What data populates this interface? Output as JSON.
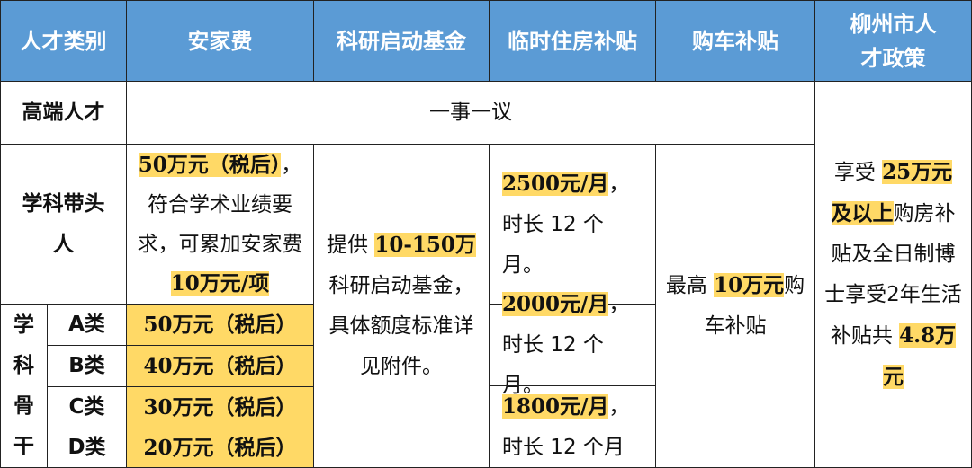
{
  "header": [
    "人才类别",
    "安家费",
    "科研启动基金",
    "临时住房补贴",
    "购车补贴",
    "柳州市人才政策"
  ],
  "high_end": {
    "label": "高端人才",
    "value": "一事一议"
  },
  "leader": {
    "label": "学科带头人",
    "settle_hl1": "50万元（税后）",
    "settle_t1": "，符合学术业绩要求，可累加安家费 ",
    "settle_hl2": "10万元/项",
    "housing_hl": "2500元/月",
    "housing_t": "，时长 12 个月。"
  },
  "research": {
    "t1": "提供 ",
    "hl": "10-150万",
    "t2": "科研启动基金，具体额度标准详见附件。"
  },
  "car": {
    "t1": "最高 ",
    "hl": "10万元",
    "t2": "购车补贴"
  },
  "city": {
    "t1": "享受 ",
    "hl1": "25万元及以上",
    "t2": "购房补贴及全日制博士享受2年生活补贴共 ",
    "hl2": "4.8万元"
  },
  "backbone": {
    "label": "学科骨干",
    "classes": [
      {
        "name": "A类",
        "settle": "50万元（税后）"
      },
      {
        "name": "B类",
        "settle": "40万元（税后）"
      },
      {
        "name": "C类",
        "settle": "30万元（税后）"
      },
      {
        "name": "D类",
        "settle": "20万元（税后）"
      }
    ],
    "housing": [
      {
        "hl": "2000元/月",
        "t": "，时长 12 个月。"
      },
      {
        "hl": "1800元/月",
        "t": "，时长 12 个月"
      }
    ]
  },
  "colors": {
    "header_bg": "#5b9bd5",
    "highlight": "#ffd966"
  }
}
